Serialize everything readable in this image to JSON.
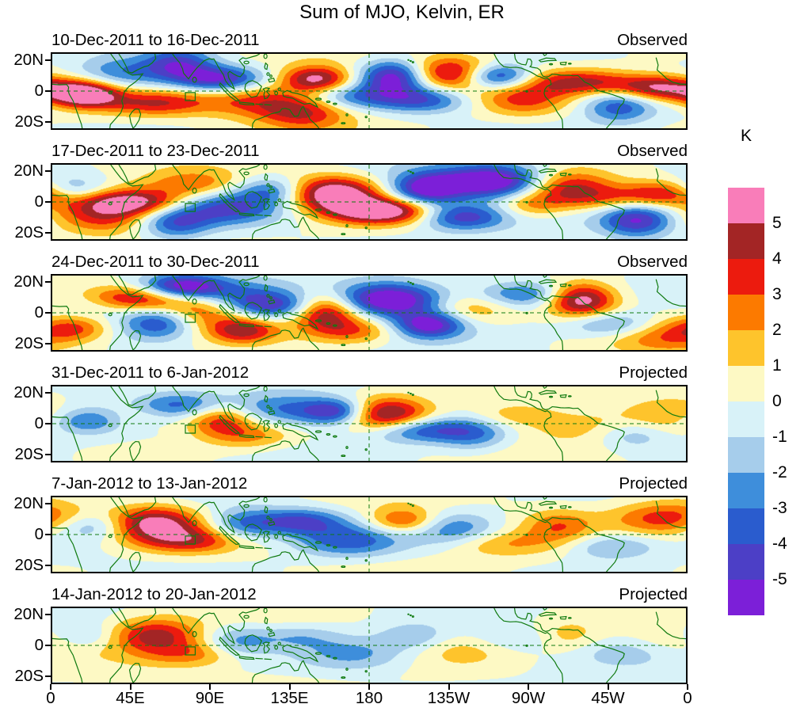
{
  "chart_data": {
    "type": "heatmap",
    "title": "Sum of MJO, Kelvin, ER",
    "units_label": "K",
    "x_axis": {
      "ticks": [
        "0",
        "45E",
        "90E",
        "135E",
        "180",
        "135W",
        "90W",
        "45W",
        "0"
      ],
      "range_deg_east": [
        0,
        360
      ]
    },
    "y_axis": {
      "ticks": [
        "20N",
        "0",
        "20S"
      ],
      "range_deg_lat": [
        -25,
        25
      ]
    },
    "contour_levels_k": [
      5,
      4,
      3,
      2,
      1,
      0,
      -1,
      -2,
      -3,
      -4,
      -5
    ],
    "palette_high_to_low": [
      "#f97db9",
      "#a32525",
      "#ec1b0e",
      "#fc7a00",
      "#fec42c",
      "#fdf9c4",
      "#d8f2f8",
      "#a6cdeb",
      "#3e8edb",
      "#2a5cce",
      "#4c3fc6",
      "#7c1fd8"
    ],
    "coastline_color": "#0f7a0f",
    "region_box": {
      "lon_e": [
        75.6,
        81.2
      ],
      "lat": [
        -6.4,
        -1.0
      ]
    },
    "panels": [
      {
        "date_range": "10-Dec-2011 to 16-Dec-2011",
        "status": "Observed",
        "anomaly_centers_lon_lat_peakK": [
          [
            18,
            -2,
            5.5
          ],
          [
            40,
            12,
            -2.5
          ],
          [
            58,
            -8,
            3
          ],
          [
            72,
            18,
            -3.5
          ],
          [
            95,
            8,
            -4.5
          ],
          [
            118,
            -6,
            2.5
          ],
          [
            150,
            8,
            4.5
          ],
          [
            143,
            -14,
            3
          ],
          [
            172,
            -4,
            -2.5
          ],
          [
            195,
            10,
            -5.5
          ],
          [
            212,
            -6,
            -3
          ],
          [
            228,
            12,
            4.5
          ],
          [
            252,
            10,
            -5.5
          ],
          [
            268,
            -6,
            2.5
          ],
          [
            300,
            6,
            3.5
          ],
          [
            322,
            -10,
            -3
          ],
          [
            345,
            2,
            4.5
          ]
        ]
      },
      {
        "date_range": "17-Dec-2011 to 23-Dec-2011",
        "status": "Observed",
        "anomaly_centers_lon_lat_peakK": [
          [
            10,
            8,
            -3
          ],
          [
            30,
            -10,
            2.5
          ],
          [
            46,
            0,
            4.5
          ],
          [
            70,
            -14,
            -3
          ],
          [
            80,
            12,
            2
          ],
          [
            100,
            -4,
            -3.5
          ],
          [
            125,
            8,
            -2.5
          ],
          [
            160,
            6,
            5.5
          ],
          [
            188,
            -6,
            5.5
          ],
          [
            212,
            8,
            -4.5
          ],
          [
            232,
            -10,
            -4
          ],
          [
            250,
            14,
            -5.5
          ],
          [
            272,
            -2,
            2
          ],
          [
            292,
            10,
            3.5
          ],
          [
            315,
            2,
            2
          ],
          [
            332,
            -12,
            -4
          ],
          [
            352,
            6,
            3.5
          ]
        ]
      },
      {
        "date_range": "24-Dec-2011 to 30-Dec-2011",
        "status": "Observed",
        "anomaly_centers_lon_lat_peakK": [
          [
            12,
            -10,
            2.5
          ],
          [
            25,
            8,
            -2
          ],
          [
            45,
            10,
            4.5
          ],
          [
            60,
            -6,
            -3.5
          ],
          [
            74,
            17,
            -5.5
          ],
          [
            88,
            2,
            3
          ],
          [
            108,
            -12,
            3.5
          ],
          [
            112,
            8,
            -2.5
          ],
          [
            132,
            4,
            -3
          ],
          [
            155,
            2,
            5.5
          ],
          [
            170,
            -12,
            2.5
          ],
          [
            192,
            9,
            -5.5
          ],
          [
            214,
            -8,
            -4.5
          ],
          [
            238,
            4,
            2
          ],
          [
            268,
            12,
            -3
          ],
          [
            300,
            9,
            5.5
          ],
          [
            318,
            -8,
            -2.5
          ],
          [
            348,
            -16,
            2
          ]
        ]
      },
      {
        "date_range": "31-Dec-2011 to 6-Jan-2012",
        "status": "Projected",
        "anomaly_centers_lon_lat_peakK": [
          [
            20,
            2,
            -2.5
          ],
          [
            48,
            8,
            1.5
          ],
          [
            72,
            12,
            -3
          ],
          [
            95,
            4,
            3.5
          ],
          [
            112,
            -8,
            2
          ],
          [
            132,
            10,
            -2.5
          ],
          [
            163,
            8,
            -4.5
          ],
          [
            188,
            6,
            5
          ],
          [
            210,
            -4,
            -3.5
          ],
          [
            240,
            -8,
            -2
          ],
          [
            262,
            6,
            1.5
          ],
          [
            298,
            -2,
            1
          ],
          [
            330,
            -8,
            -1.5
          ],
          [
            352,
            6,
            1
          ]
        ]
      },
      {
        "date_range": "7-Jan-2012 to 13-Jan-2012",
        "status": "Projected",
        "anomaly_centers_lon_lat_peakK": [
          [
            22,
            6,
            -2
          ],
          [
            58,
            8,
            4.5
          ],
          [
            78,
            -4,
            3
          ],
          [
            108,
            6,
            -2.5
          ],
          [
            140,
            9,
            -3.5
          ],
          [
            168,
            -4,
            -3
          ],
          [
            200,
            9,
            3
          ],
          [
            228,
            4,
            -2.5
          ],
          [
            255,
            -6,
            1.5
          ],
          [
            288,
            6,
            2
          ],
          [
            318,
            -8,
            -2
          ],
          [
            350,
            11,
            3
          ]
        ]
      },
      {
        "date_range": "14-Jan-2012 to 20-Jan-2012",
        "status": "Projected",
        "anomaly_centers_lon_lat_peakK": [
          [
            18,
            6,
            -1.5
          ],
          [
            58,
            7,
            3.5
          ],
          [
            80,
            -6,
            2
          ],
          [
            105,
            2,
            -2
          ],
          [
            140,
            6,
            -1.5
          ],
          [
            172,
            -6,
            -2
          ],
          [
            205,
            6,
            -1.5
          ],
          [
            235,
            -2,
            1
          ],
          [
            262,
            4,
            -1
          ],
          [
            292,
            6,
            1.5
          ],
          [
            325,
            -4,
            -1
          ],
          [
            352,
            2,
            1
          ]
        ]
      }
    ]
  }
}
